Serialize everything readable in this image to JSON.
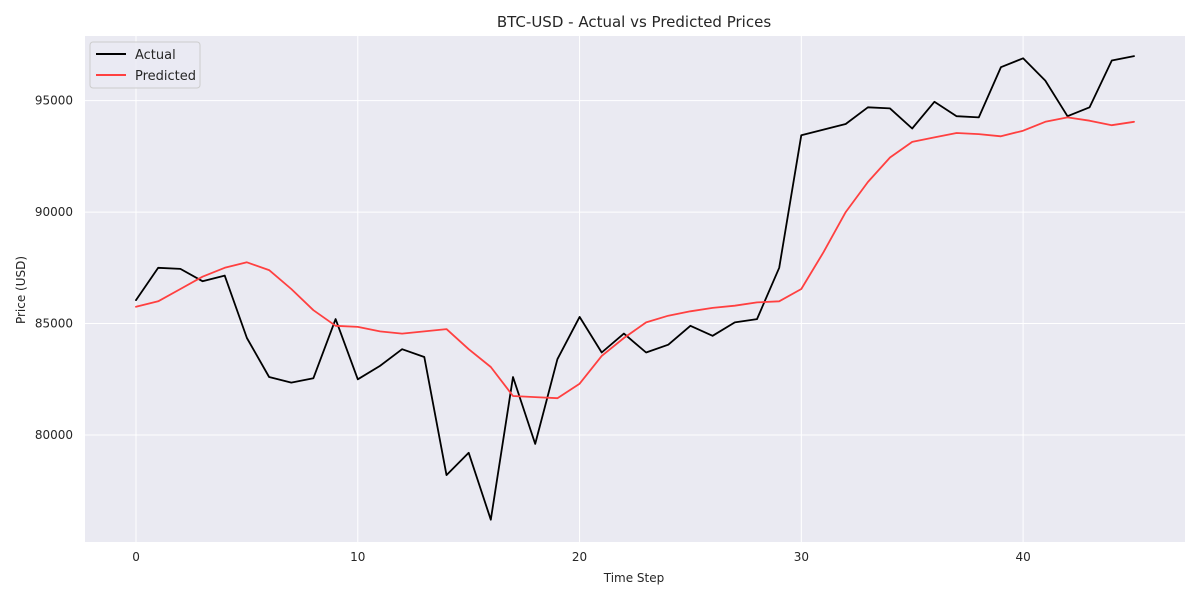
{
  "chart_data": {
    "type": "line",
    "title": "BTC-USD - Actual vs Predicted Prices",
    "xlabel": "Time Step",
    "ylabel": "Price (USD)",
    "xlim": [
      -2.3,
      47.3
    ],
    "ylim": [
      75200,
      97900
    ],
    "xticks": [
      0,
      10,
      20,
      30,
      40
    ],
    "yticks": [
      80000,
      85000,
      90000,
      95000
    ],
    "grid": true,
    "legend_position": "top-left",
    "background_color": "#eaeaf2",
    "grid_color": "#ffffff",
    "x": [
      0,
      1,
      2,
      3,
      4,
      5,
      6,
      7,
      8,
      9,
      10,
      11,
      12,
      13,
      14,
      15,
      16,
      17,
      18,
      19,
      20,
      21,
      22,
      23,
      24,
      25,
      26,
      27,
      28,
      29,
      30,
      31,
      32,
      33,
      34,
      35,
      36,
      37,
      38,
      39,
      40,
      41,
      42,
      43,
      44,
      45
    ],
    "series": [
      {
        "name": "Actual",
        "color": "#000000",
        "values": [
          86050,
          87500,
          87450,
          86900,
          87150,
          84350,
          82600,
          82350,
          82550,
          85200,
          82500,
          83100,
          83850,
          83500,
          78200,
          79200,
          76200,
          82600,
          79600,
          83400,
          85300,
          83700,
          84550,
          83700,
          84050,
          84900,
          84450,
          85050,
          85200,
          87500,
          93450,
          93700,
          93950,
          94700,
          94650,
          93750,
          94950,
          94300,
          94250,
          96500,
          96900,
          95900,
          94300,
          94700,
          96800,
          97000
        ]
      },
      {
        "name": "Predicted",
        "color": "#ff4040",
        "values": [
          85750,
          86000,
          86550,
          87100,
          87500,
          87750,
          87400,
          86550,
          85600,
          84900,
          84850,
          84650,
          84550,
          84650,
          84750,
          83850,
          83050,
          81750,
          81700,
          81650,
          82300,
          83550,
          84350,
          85050,
          85350,
          85550,
          85700,
          85800,
          85950,
          86000,
          86550,
          88200,
          90000,
          91350,
          92450,
          93150,
          93350,
          93550,
          93500,
          93400,
          93650,
          94050,
          94250,
          94100,
          93900,
          94050
        ]
      }
    ]
  }
}
